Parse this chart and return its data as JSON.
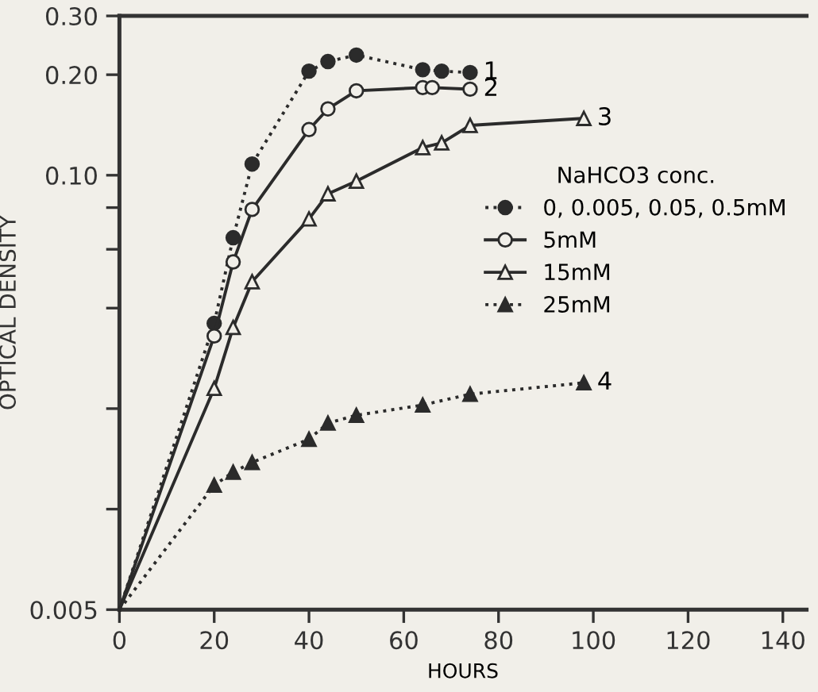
{
  "chart_data": {
    "type": "line",
    "xlabel": "HOURS",
    "ylabel": "OPTICAL DENSITY",
    "legend_title": "NaHCO3 conc.",
    "legend": "right",
    "log": "y",
    "grid": false,
    "xlim": [
      0,
      145
    ],
    "xticks": [
      0,
      20,
      40,
      60,
      80,
      100,
      120,
      140
    ],
    "ylim": [
      0.005,
      0.3
    ],
    "yticks": [
      0.005,
      {
        "value": 0.01,
        "label": null
      },
      {
        "value": 0.02,
        "label": null
      },
      {
        "value": 0.04,
        "label": null
      },
      {
        "value": 0.06,
        "label": null
      },
      {
        "value": 0.08,
        "label": null
      },
      {
        "value": 0.1,
        "label": "0.10"
      },
      {
        "value": 0.2,
        "label": "0.20"
      },
      {
        "value": 0.3,
        "label": "0.30"
      }
    ],
    "series": [
      {
        "name": "0, 0.005, 0.05, 0.5mM",
        "color": "#2b2b2b",
        "marker": "circle",
        "line_style": "dotted",
        "x": [
          0,
          20,
          24,
          28,
          40,
          44,
          50,
          64,
          68,
          74
        ],
        "values": [
          0.005,
          0.036,
          0.065,
          0.108,
          0.205,
          0.219,
          0.229,
          0.207,
          0.205,
          0.203
        ]
      },
      {
        "name": "5mM",
        "color": "#2b2b2b",
        "marker": "circle",
        "line_style": "solid",
        "x": [
          0,
          20,
          24,
          28,
          40,
          44,
          50,
          64,
          66,
          74
        ],
        "values": [
          0.005,
          0.033,
          0.055,
          0.079,
          0.137,
          0.158,
          0.179,
          0.183,
          0.183,
          0.181
        ]
      },
      {
        "name": "15mM",
        "color": "#2b2b2b",
        "marker": "triangle",
        "line_style": "solid",
        "x": [
          0,
          20,
          24,
          28,
          40,
          44,
          50,
          64,
          68,
          74,
          98
        ],
        "values": [
          0.005,
          0.023,
          0.035,
          0.048,
          0.074,
          0.088,
          0.096,
          0.121,
          0.125,
          0.141,
          0.148
        ]
      },
      {
        "name": "25mM",
        "color": "#2b2b2b",
        "marker": "triangle",
        "line_style": "dotted",
        "x": [
          0,
          20,
          24,
          28,
          40,
          44,
          50,
          64,
          74,
          98
        ],
        "values": [
          0.005,
          0.0118,
          0.0129,
          0.0138,
          0.0162,
          0.0181,
          0.0191,
          0.0205,
          0.0221,
          0.0239
        ]
      }
    ],
    "annotations": [
      "1",
      "2",
      "3",
      "4"
    ]
  }
}
